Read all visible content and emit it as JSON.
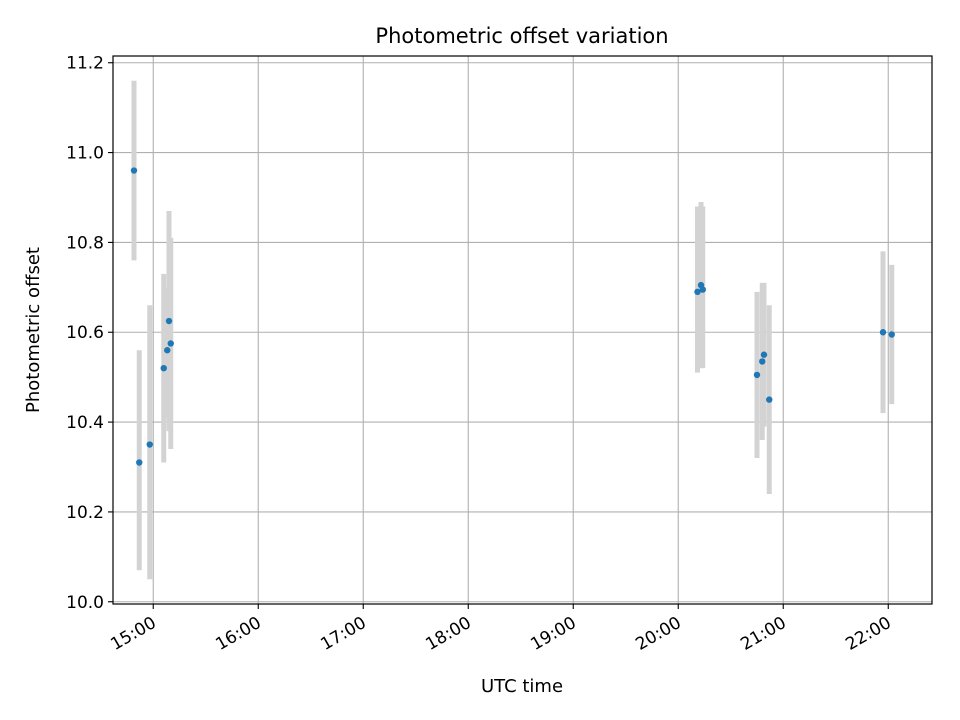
{
  "chart_data": {
    "type": "scatter",
    "title": "Photometric offset variation",
    "xlabel": "UTC time",
    "ylabel": "Photometric offset",
    "x_ticks": [
      "15:00",
      "16:00",
      "17:00",
      "18:00",
      "19:00",
      "20:00",
      "21:00",
      "22:00"
    ],
    "y_ticks": [
      "10.0",
      "10.2",
      "10.4",
      "10.6",
      "10.8",
      "11.0",
      "11.2"
    ],
    "xlim": [
      "14:37",
      "22:25"
    ],
    "ylim": [
      9.995,
      11.215
    ],
    "grid": true,
    "errorbar_color": "#d3d3d3",
    "point_color": "#1f77b4",
    "points": [
      {
        "x": "14:49",
        "y": 10.96,
        "ylow": 10.76,
        "yhigh": 11.16
      },
      {
        "x": "14:52",
        "y": 10.31,
        "ylow": 10.07,
        "yhigh": 10.56
      },
      {
        "x": "14:58",
        "y": 10.35,
        "ylow": 10.05,
        "yhigh": 10.66
      },
      {
        "x": "15:06",
        "y": 10.52,
        "ylow": 10.31,
        "yhigh": 10.73
      },
      {
        "x": "15:08",
        "y": 10.56,
        "ylow": 10.41,
        "yhigh": 10.7
      },
      {
        "x": "15:09",
        "y": 10.625,
        "ylow": 10.38,
        "yhigh": 10.87
      },
      {
        "x": "15:10",
        "y": 10.575,
        "ylow": 10.34,
        "yhigh": 10.81
      },
      {
        "x": "20:11",
        "y": 10.69,
        "ylow": 10.51,
        "yhigh": 10.88
      },
      {
        "x": "20:13",
        "y": 10.705,
        "ylow": 10.52,
        "yhigh": 10.89
      },
      {
        "x": "20:14",
        "y": 10.695,
        "ylow": 10.52,
        "yhigh": 10.88
      },
      {
        "x": "20:45",
        "y": 10.505,
        "ylow": 10.32,
        "yhigh": 10.69
      },
      {
        "x": "20:48",
        "y": 10.535,
        "ylow": 10.36,
        "yhigh": 10.71
      },
      {
        "x": "20:49",
        "y": 10.55,
        "ylow": 10.39,
        "yhigh": 10.71
      },
      {
        "x": "20:52",
        "y": 10.45,
        "ylow": 10.24,
        "yhigh": 10.66
      },
      {
        "x": "21:57",
        "y": 10.6,
        "ylow": 10.42,
        "yhigh": 10.78
      },
      {
        "x": "22:02",
        "y": 10.595,
        "ylow": 10.44,
        "yhigh": 10.75
      }
    ]
  }
}
